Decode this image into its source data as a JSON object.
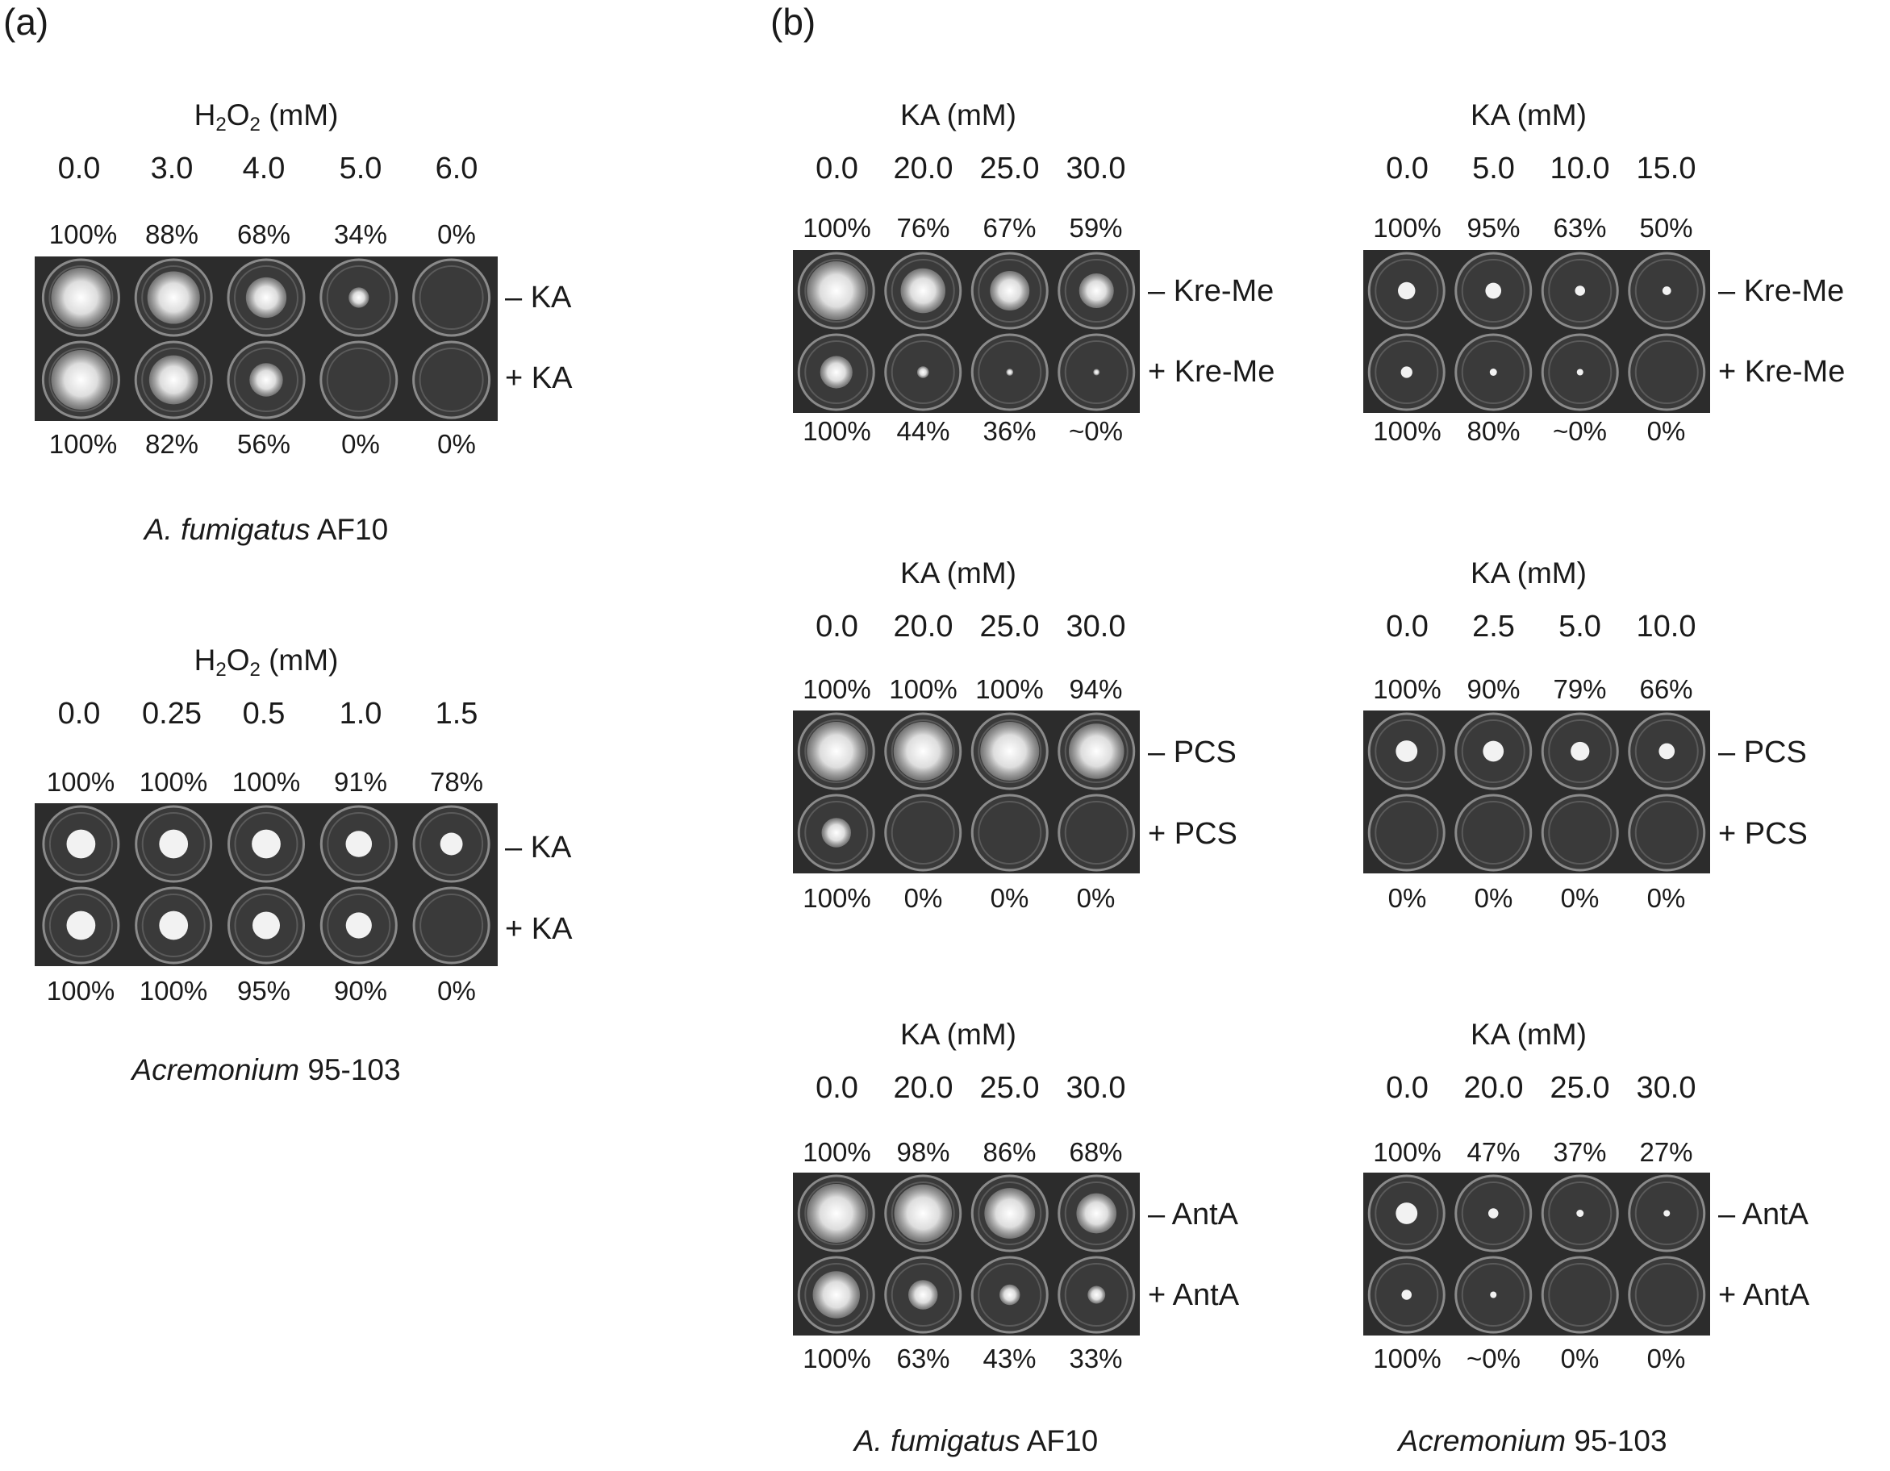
{
  "figure_labels": {
    "a": "(a)",
    "b": "(b)"
  },
  "colors": {
    "plate_background": "#2c2c2c",
    "well_background": "#3a3a3a",
    "colony": "#f2f2f2",
    "text": "#1a1a1a"
  },
  "panel_a": [
    {
      "title_prefix": "H",
      "title_sub1": "2",
      "title_mid": "O",
      "title_sub2": "2",
      "title_suffix": " (mM)",
      "concentrations": [
        "0.0",
        "3.0",
        "4.0",
        "5.0",
        "6.0"
      ],
      "top_pct": [
        "100%",
        "88%",
        "68%",
        "34%",
        "0%"
      ],
      "bottom_pct": [
        "100%",
        "82%",
        "56%",
        "0%",
        "0%"
      ],
      "row_labels": [
        "– KA",
        "+ KA"
      ],
      "strain_italic": "A. fumigatus",
      "strain_rest": " AF10",
      "top_growth": [
        1.0,
        0.88,
        0.68,
        0.34,
        0
      ],
      "bottom_growth": [
        1.0,
        0.82,
        0.56,
        0,
        0
      ],
      "style": "diffuse"
    },
    {
      "title_prefix": "H",
      "title_sub1": "2",
      "title_mid": "O",
      "title_sub2": "2",
      "title_suffix": " (mM)",
      "concentrations": [
        "0.0",
        "0.25",
        "0.5",
        "1.0",
        "1.5"
      ],
      "top_pct": [
        "100%",
        "100%",
        "100%",
        "91%",
        "78%"
      ],
      "bottom_pct": [
        "100%",
        "100%",
        "95%",
        "90%",
        "0%"
      ],
      "row_labels": [
        "– KA",
        "+ KA"
      ],
      "strain_italic": "Acremonium",
      "strain_rest": " 95-103",
      "top_growth": [
        1.0,
        1.0,
        1.0,
        0.91,
        0.78
      ],
      "bottom_growth": [
        1.0,
        1.0,
        0.95,
        0.9,
        0
      ],
      "style": "compact"
    }
  ],
  "panel_b": [
    {
      "title": "KA (mM)",
      "concentrations": [
        "0.0",
        "20.0",
        "25.0",
        "30.0"
      ],
      "top_pct": [
        "100%",
        "76%",
        "67%",
        "59%"
      ],
      "bottom_pct": [
        "100%",
        "44%",
        "36%",
        "~0%"
      ],
      "row_labels": [
        "– Kre-Me",
        "+ Kre-Me"
      ],
      "top_growth": [
        1.0,
        0.76,
        0.67,
        0.59
      ],
      "bottom_growth": [
        0.55,
        0.2,
        0.12,
        0.06
      ],
      "style": "diffuse"
    },
    {
      "title": "KA (mM)",
      "concentrations": [
        "0.0",
        "5.0",
        "10.0",
        "15.0"
      ],
      "top_pct": [
        "100%",
        "95%",
        "63%",
        "50%"
      ],
      "bottom_pct": [
        "100%",
        "80%",
        "~0%",
        "0%"
      ],
      "row_labels": [
        "– Kre-Me",
        "+ Kre-Me"
      ],
      "top_growth": [
        0.6,
        0.55,
        0.35,
        0.3
      ],
      "bottom_growth": [
        0.4,
        0.25,
        0.08,
        0
      ],
      "style": "compact"
    },
    {
      "title": "KA (mM)",
      "concentrations": [
        "0.0",
        "20.0",
        "25.0",
        "30.0"
      ],
      "top_pct": [
        "100%",
        "100%",
        "100%",
        "94%"
      ],
      "bottom_pct": [
        "100%",
        "0%",
        "0%",
        "0%"
      ],
      "row_labels": [
        "– PCS",
        "+ PCS"
      ],
      "top_growth": [
        1.0,
        1.0,
        1.0,
        0.94
      ],
      "bottom_growth": [
        0.5,
        0,
        0,
        0
      ],
      "style": "diffuse"
    },
    {
      "title": "KA (mM)",
      "concentrations": [
        "0.0",
        "2.5",
        "5.0",
        "10.0"
      ],
      "top_pct": [
        "100%",
        "90%",
        "79%",
        "66%"
      ],
      "bottom_pct": [
        "0%",
        "0%",
        "0%",
        "0%"
      ],
      "row_labels": [
        "– PCS",
        "+ PCS"
      ],
      "top_growth": [
        0.75,
        0.72,
        0.65,
        0.55
      ],
      "bottom_growth": [
        0,
        0,
        0,
        0
      ],
      "style": "compact"
    },
    {
      "title": "KA (mM)",
      "concentrations": [
        "0.0",
        "20.0",
        "25.0",
        "30.0"
      ],
      "top_pct": [
        "100%",
        "98%",
        "86%",
        "68%"
      ],
      "bottom_pct": [
        "100%",
        "63%",
        "43%",
        "33%"
      ],
      "row_labels": [
        "– AntA",
        "+ AntA"
      ],
      "top_growth": [
        1.0,
        0.98,
        0.86,
        0.68
      ],
      "bottom_growth": [
        0.8,
        0.5,
        0.35,
        0.3
      ],
      "style": "diffuse",
      "strain_italic": "A. fumigatus",
      "strain_rest": " AF10"
    },
    {
      "title": "KA (mM)",
      "concentrations": [
        "0.0",
        "20.0",
        "25.0",
        "30.0"
      ],
      "top_pct": [
        "100%",
        "47%",
        "37%",
        "27%"
      ],
      "bottom_pct": [
        "100%",
        "~0%",
        "0%",
        "0%"
      ],
      "row_labels": [
        "– AntA",
        "+ AntA"
      ],
      "top_growth": [
        0.75,
        0.35,
        0.25,
        0.2
      ],
      "bottom_growth": [
        0.35,
        0.06,
        0,
        0
      ],
      "style": "compact",
      "strain_italic": "Acremonium",
      "strain_rest": " 95-103"
    }
  ]
}
